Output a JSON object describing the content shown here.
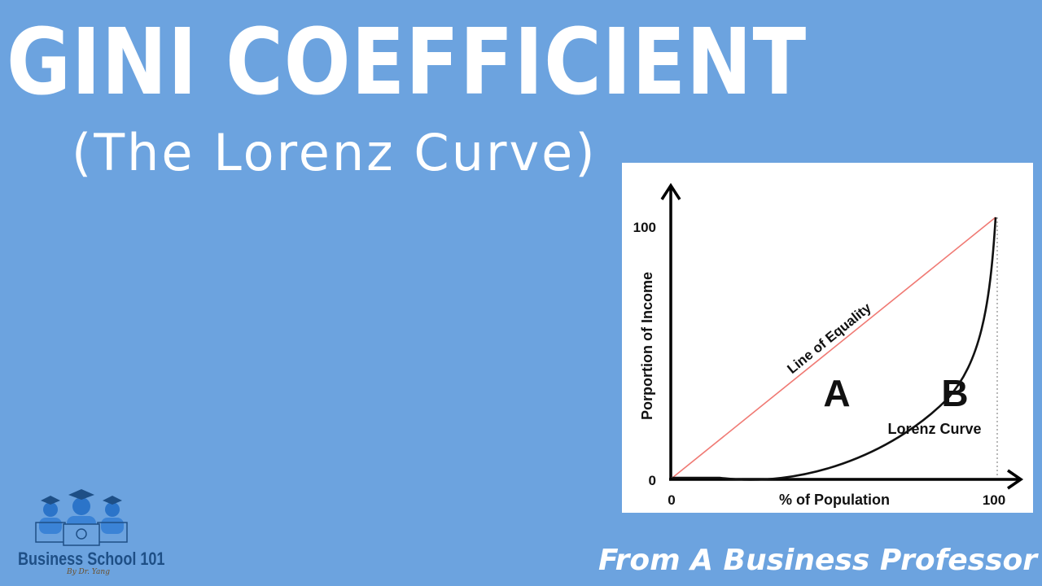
{
  "header": {
    "title": "GINI COEFFICIENT",
    "subtitle": "(The Lorenz Curve)"
  },
  "diagram": {
    "y_axis_label": "Porportion of Income",
    "x_axis_label": "% of Population",
    "y_tick_top": "100",
    "y_tick_bottom": "0",
    "x_tick_left": "0",
    "x_tick_right": "100",
    "equality_label": "Line of Equality",
    "region_a_label": "A",
    "region_b_label": "B",
    "lorenz_label": "Lorenz Curve",
    "equality_color": "#f07a74",
    "curve_color": "#111111"
  },
  "logo": {
    "name": "Business School 101",
    "tagline": "By Dr. Yang"
  },
  "footer": {
    "text": "From A Business Professor"
  }
}
